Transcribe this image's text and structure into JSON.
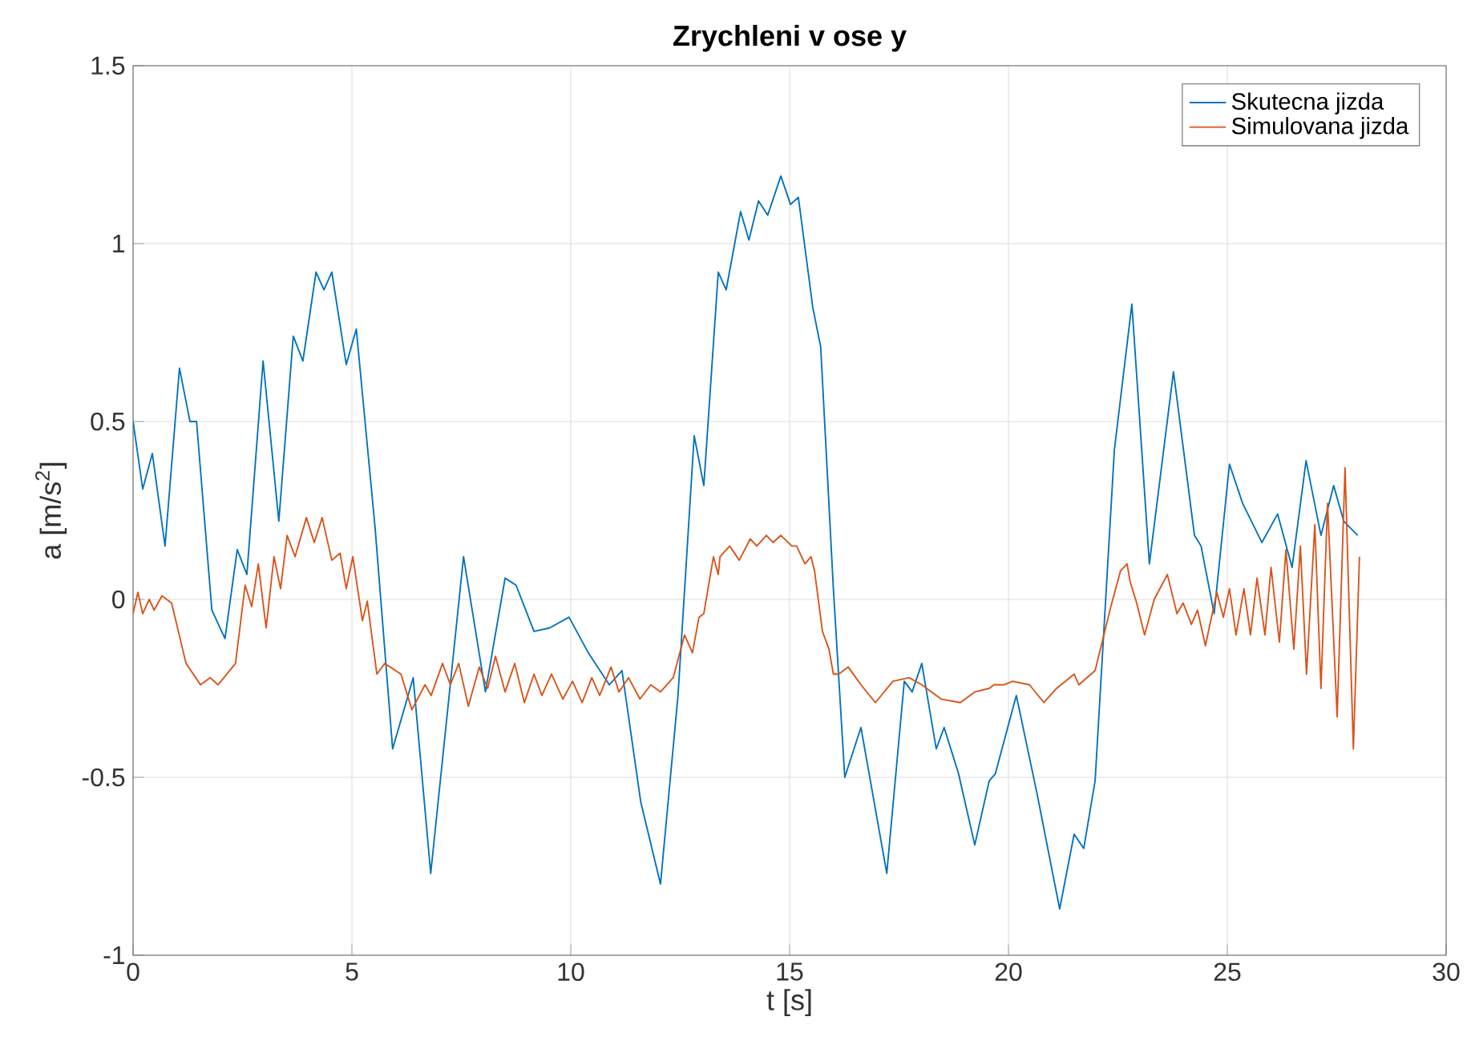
{
  "chart_data": {
    "type": "line",
    "title": "Zrychleni v ose y",
    "xlabel": "t [s]",
    "ylabel": "a [m/s$^{2}$]",
    "xlim": [
      0,
      30
    ],
    "ylim": [
      -1,
      1.5
    ],
    "xticks": [
      0,
      5,
      10,
      15,
      20,
      25,
      30
    ],
    "yticks": [
      -1,
      -0.5,
      0,
      0.5,
      1,
      1.5
    ],
    "grid": true,
    "legend": "top right",
    "marker": "none",
    "line_style": "solid",
    "series": [
      {
        "name": "Skutecna jizda",
        "color": "#0072bd",
        "x": [
          0,
          0.22,
          0.44,
          0.73,
          1.06,
          1.3,
          1.45,
          1.8,
          2.1,
          2.38,
          2.6,
          2.97,
          3.33,
          3.66,
          3.88,
          4.18,
          4.36,
          4.54,
          4.87,
          5.1,
          5.53,
          5.93,
          6.4,
          6.8,
          7.55,
          8.05,
          8.5,
          8.75,
          9.16,
          9.52,
          9.96,
          10.4,
          10.88,
          11.17,
          11.6,
          12.05,
          12.45,
          12.82,
          13.04,
          13.37,
          13.55,
          13.88,
          14.07,
          14.29,
          14.5,
          14.8,
          15.02,
          15.2,
          15.53,
          15.71,
          16.0,
          16.26,
          16.63,
          17.22,
          17.62,
          17.8,
          18.02,
          18.35,
          18.53,
          18.86,
          19.23,
          19.56,
          19.7,
          20.18,
          20.66,
          21.17,
          21.5,
          21.72,
          21.98,
          22.42,
          22.82,
          23.22,
          23.77,
          24.25,
          24.4,
          24.7,
          25.05,
          25.35,
          25.79,
          26.15,
          26.48,
          26.8,
          27.14,
          27.43,
          27.66,
          27.98
        ],
        "values": [
          0.5,
          0.31,
          0.41,
          0.15,
          0.65,
          0.5,
          0.5,
          -0.03,
          -0.11,
          0.14,
          0.07,
          0.67,
          0.22,
          0.74,
          0.67,
          0.92,
          0.87,
          0.92,
          0.66,
          0.76,
          0.2,
          -0.42,
          -0.22,
          -0.77,
          0.12,
          -0.26,
          0.06,
          0.04,
          -0.09,
          -0.08,
          -0.05,
          -0.15,
          -0.24,
          -0.2,
          -0.57,
          -0.8,
          -0.27,
          0.46,
          0.32,
          0.92,
          0.87,
          1.09,
          1.01,
          1.12,
          1.08,
          1.19,
          1.11,
          1.13,
          0.82,
          0.71,
          0.03,
          -0.5,
          -0.36,
          -0.77,
          -0.23,
          -0.26,
          -0.18,
          -0.42,
          -0.36,
          -0.49,
          -0.69,
          -0.51,
          -0.49,
          -0.27,
          -0.55,
          -0.87,
          -0.66,
          -0.7,
          -0.51,
          0.42,
          0.83,
          0.1,
          0.64,
          0.18,
          0.15,
          -0.04,
          0.38,
          0.27,
          0.16,
          0.24,
          0.09,
          0.39,
          0.18,
          0.32,
          0.22,
          0.18
        ]
      },
      {
        "name": "Simulovana jizda",
        "color": "#d95319",
        "x": [
          0,
          0.11,
          0.22,
          0.37,
          0.48,
          0.66,
          0.88,
          1.21,
          1.54,
          1.76,
          1.94,
          2.34,
          2.56,
          2.71,
          2.86,
          3.04,
          3.22,
          3.37,
          3.52,
          3.7,
          3.96,
          4.14,
          4.32,
          4.54,
          4.73,
          4.87,
          5.02,
          5.24,
          5.35,
          5.57,
          5.75,
          6.12,
          6.37,
          6.67,
          6.81,
          7.07,
          7.25,
          7.44,
          7.66,
          7.91,
          8.1,
          8.28,
          8.5,
          8.72,
          8.94,
          9.16,
          9.34,
          9.56,
          9.82,
          10.04,
          10.26,
          10.48,
          10.66,
          10.92,
          11.1,
          11.32,
          11.58,
          11.83,
          12.05,
          12.34,
          12.6,
          12.78,
          12.93,
          13.04,
          13.26,
          13.37,
          13.41,
          13.63,
          13.85,
          14.1,
          14.25,
          14.47,
          14.62,
          14.8,
          15.05,
          15.16,
          15.35,
          15.49,
          15.57,
          15.75,
          15.9,
          16.0,
          16.12,
          16.34,
          16.63,
          16.96,
          17.36,
          17.73,
          18.02,
          18.46,
          18.9,
          19.23,
          19.56,
          19.67,
          19.89,
          20.1,
          20.48,
          20.81,
          21.1,
          21.5,
          21.61,
          21.98,
          22.2,
          22.34,
          22.56,
          22.71,
          22.78,
          22.93,
          23.11,
          23.33,
          23.63,
          23.85,
          23.99,
          24.18,
          24.32,
          24.5,
          24.76,
          24.91,
          25.05,
          25.2,
          25.38,
          25.53,
          25.68,
          25.86,
          26.0,
          26.19,
          26.34,
          26.52,
          26.67,
          26.81,
          27.0,
          27.14,
          27.29,
          27.51,
          27.69,
          27.88,
          28.02
        ],
        "values": [
          -0.04,
          0.02,
          -0.04,
          0.0,
          -0.03,
          0.01,
          -0.01,
          -0.18,
          -0.24,
          -0.22,
          -0.24,
          -0.18,
          0.04,
          -0.02,
          0.1,
          -0.08,
          0.12,
          0.03,
          0.18,
          0.12,
          0.23,
          0.16,
          0.23,
          0.11,
          0.13,
          0.03,
          0.12,
          -0.06,
          -0.005,
          -0.21,
          -0.18,
          -0.21,
          -0.31,
          -0.24,
          -0.27,
          -0.18,
          -0.24,
          -0.18,
          -0.3,
          -0.19,
          -0.25,
          -0.16,
          -0.26,
          -0.18,
          -0.29,
          -0.21,
          -0.27,
          -0.21,
          -0.28,
          -0.23,
          -0.29,
          -0.22,
          -0.27,
          -0.19,
          -0.26,
          -0.22,
          -0.28,
          -0.24,
          -0.26,
          -0.22,
          -0.1,
          -0.15,
          -0.05,
          -0.04,
          0.12,
          0.07,
          0.12,
          0.15,
          0.11,
          0.17,
          0.15,
          0.18,
          0.16,
          0.18,
          0.15,
          0.15,
          0.1,
          0.12,
          0.08,
          -0.09,
          -0.14,
          -0.21,
          -0.21,
          -0.19,
          -0.24,
          -0.29,
          -0.23,
          -0.22,
          -0.24,
          -0.28,
          -0.29,
          -0.26,
          -0.25,
          -0.24,
          -0.24,
          -0.23,
          -0.24,
          -0.29,
          -0.25,
          -0.21,
          -0.24,
          -0.2,
          -0.09,
          -0.02,
          0.08,
          0.1,
          0.05,
          -0.01,
          -0.1,
          0.0,
          0.07,
          -0.04,
          -0.01,
          -0.07,
          -0.03,
          -0.13,
          0.02,
          -0.05,
          0.03,
          -0.1,
          0.03,
          -0.1,
          0.06,
          -0.1,
          0.09,
          -0.12,
          0.14,
          -0.14,
          0.15,
          -0.21,
          0.21,
          -0.25,
          0.27,
          -0.33,
          0.37,
          -0.42,
          0.12
        ]
      }
    ]
  }
}
